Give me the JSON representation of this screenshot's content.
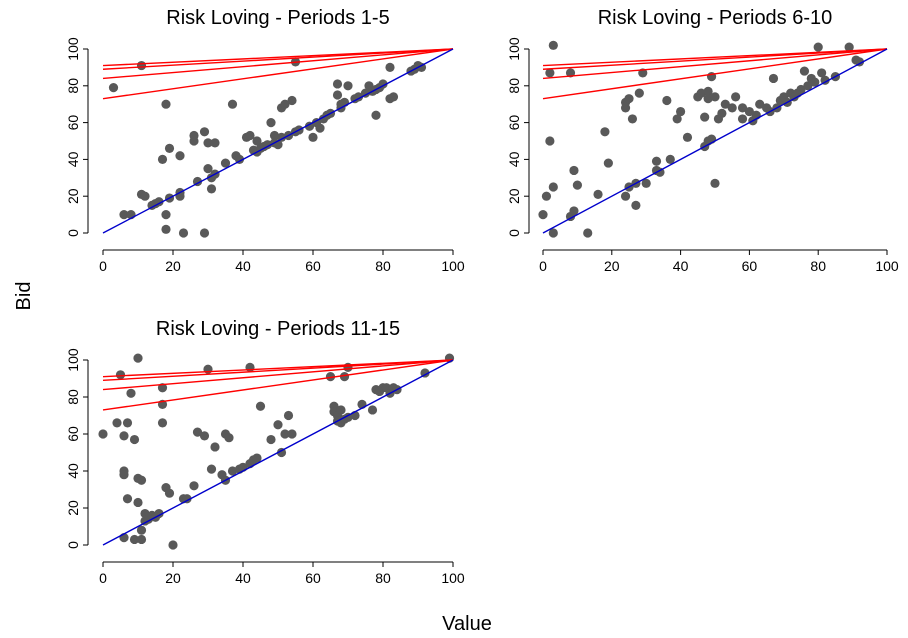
{
  "figure": {
    "xlabel": "Value",
    "ylabel": "Bid"
  },
  "colors": {
    "points": "#595959",
    "equilibrium_lines": "#ff0000",
    "risk_neutral_line": "#0000cc",
    "axes": "#000000"
  },
  "chart_data": [
    {
      "type": "scatter",
      "title": "Risk Loving - Periods 1-5",
      "xlim": [
        0,
        100
      ],
      "ylim": [
        0,
        100
      ],
      "xticks": [
        "0",
        "20",
        "40",
        "60",
        "80",
        "100"
      ],
      "yticks": [
        "0",
        "20",
        "40",
        "60",
        "80",
        "100"
      ],
      "points": [
        [
          3,
          79
        ],
        [
          6,
          10
        ],
        [
          8,
          10
        ],
        [
          11,
          91
        ],
        [
          11,
          21
        ],
        [
          12,
          20
        ],
        [
          14,
          15
        ],
        [
          15,
          16
        ],
        [
          16,
          17
        ],
        [
          17,
          40
        ],
        [
          18,
          70
        ],
        [
          18,
          10
        ],
        [
          18,
          2
        ],
        [
          19,
          19
        ],
        [
          19,
          46
        ],
        [
          22,
          42
        ],
        [
          22,
          20
        ],
        [
          22,
          22
        ],
        [
          23,
          0
        ],
        [
          26,
          50
        ],
        [
          26,
          53
        ],
        [
          27,
          28
        ],
        [
          29,
          0
        ],
        [
          29,
          55
        ],
        [
          30,
          35
        ],
        [
          30,
          49
        ],
        [
          31,
          24
        ],
        [
          31,
          30
        ],
        [
          32,
          32
        ],
        [
          32,
          49
        ],
        [
          35,
          38
        ],
        [
          37,
          70
        ],
        [
          38,
          42
        ],
        [
          39,
          40
        ],
        [
          41,
          52
        ],
        [
          42,
          53
        ],
        [
          43,
          45
        ],
        [
          44,
          44
        ],
        [
          44,
          50
        ],
        [
          45,
          46
        ],
        [
          46,
          47
        ],
        [
          47,
          48
        ],
        [
          48,
          60
        ],
        [
          49,
          49
        ],
        [
          49,
          53
        ],
        [
          50,
          48
        ],
        [
          51,
          68
        ],
        [
          51,
          52
        ],
        [
          52,
          70
        ],
        [
          53,
          53
        ],
        [
          54,
          72
        ],
        [
          55,
          55
        ],
        [
          55,
          93
        ],
        [
          56,
          56
        ],
        [
          59,
          58
        ],
        [
          60,
          52
        ],
        [
          61,
          60
        ],
        [
          62,
          57
        ],
        [
          63,
          62
        ],
        [
          64,
          64
        ],
        [
          65,
          65
        ],
        [
          67,
          75
        ],
        [
          67,
          81
        ],
        [
          68,
          70
        ],
        [
          68,
          68
        ],
        [
          69,
          71
        ],
        [
          70,
          80
        ],
        [
          72,
          73
        ],
        [
          73,
          74
        ],
        [
          75,
          76
        ],
        [
          76,
          80
        ],
        [
          77,
          77
        ],
        [
          78,
          64
        ],
        [
          78,
          78
        ],
        [
          79,
          79
        ],
        [
          80,
          81
        ],
        [
          82,
          90
        ],
        [
          82,
          73
        ],
        [
          83,
          74
        ],
        [
          88,
          88
        ],
        [
          89,
          89
        ],
        [
          90,
          91
        ],
        [
          91,
          90
        ]
      ],
      "lines": [
        {
          "name": "",
          "color": "#ff0000",
          "x": [
            0,
            100
          ],
          "y": [
            91,
            100
          ]
        },
        {
          "name": "",
          "color": "#ff0000",
          "x": [
            0,
            100
          ],
          "y": [
            89,
            100
          ]
        },
        {
          "name": "",
          "color": "#ff0000",
          "x": [
            0,
            100
          ],
          "y": [
            84,
            100
          ]
        },
        {
          "name": "",
          "color": "#ff0000",
          "x": [
            0,
            100
          ],
          "y": [
            73,
            100
          ]
        },
        {
          "name": "",
          "color": "#0000cc",
          "x": [
            0,
            100
          ],
          "y": [
            0,
            100
          ]
        }
      ]
    },
    {
      "type": "scatter",
      "title": "Risk Loving - Periods 6-10",
      "xlim": [
        0,
        100
      ],
      "ylim": [
        0,
        100
      ],
      "xticks": [
        "0",
        "20",
        "40",
        "60",
        "80",
        "100"
      ],
      "yticks": [
        "0",
        "20",
        "40",
        "60",
        "80",
        "100"
      ],
      "points": [
        [
          0,
          10
        ],
        [
          1,
          20
        ],
        [
          2,
          87
        ],
        [
          2,
          50
        ],
        [
          3,
          0
        ],
        [
          3,
          25
        ],
        [
          3,
          102
        ],
        [
          8,
          87
        ],
        [
          8,
          9
        ],
        [
          9,
          12
        ],
        [
          9,
          34
        ],
        [
          10,
          26
        ],
        [
          13,
          0
        ],
        [
          16,
          21
        ],
        [
          18,
          55
        ],
        [
          19,
          38
        ],
        [
          24,
          20
        ],
        [
          24,
          68
        ],
        [
          24,
          71
        ],
        [
          25,
          73
        ],
        [
          25,
          25
        ],
        [
          26,
          62
        ],
        [
          27,
          15
        ],
        [
          27,
          27
        ],
        [
          28,
          76
        ],
        [
          29,
          87
        ],
        [
          30,
          27
        ],
        [
          33,
          34
        ],
        [
          33,
          39
        ],
        [
          34,
          33
        ],
        [
          36,
          72
        ],
        [
          37,
          40
        ],
        [
          39,
          62
        ],
        [
          40,
          66
        ],
        [
          42,
          52
        ],
        [
          45,
          74
        ],
        [
          46,
          76
        ],
        [
          47,
          47
        ],
        [
          47,
          63
        ],
        [
          48,
          50
        ],
        [
          48,
          77
        ],
        [
          48,
          73
        ],
        [
          49,
          51
        ],
        [
          49,
          85
        ],
        [
          50,
          27
        ],
        [
          50,
          74
        ],
        [
          51,
          62
        ],
        [
          52,
          65
        ],
        [
          53,
          70
        ],
        [
          55,
          68
        ],
        [
          56,
          74
        ],
        [
          58,
          68
        ],
        [
          58,
          62
        ],
        [
          60,
          66
        ],
        [
          61,
          61
        ],
        [
          62,
          64
        ],
        [
          63,
          70
        ],
        [
          65,
          68
        ],
        [
          66,
          66
        ],
        [
          67,
          84
        ],
        [
          68,
          68
        ],
        [
          69,
          72
        ],
        [
          70,
          74
        ],
        [
          71,
          71
        ],
        [
          72,
          76
        ],
        [
          73,
          74
        ],
        [
          74,
          76
        ],
        [
          75,
          78
        ],
        [
          76,
          88
        ],
        [
          77,
          80
        ],
        [
          78,
          84
        ],
        [
          79,
          82
        ],
        [
          80,
          101
        ],
        [
          81,
          87
        ],
        [
          82,
          83
        ],
        [
          85,
          85
        ],
        [
          89,
          101
        ],
        [
          91,
          94
        ],
        [
          92,
          93
        ]
      ],
      "lines": [
        {
          "name": "",
          "color": "#ff0000",
          "x": [
            0,
            100
          ],
          "y": [
            91,
            100
          ]
        },
        {
          "name": "",
          "color": "#ff0000",
          "x": [
            0,
            100
          ],
          "y": [
            89,
            100
          ]
        },
        {
          "name": "",
          "color": "#ff0000",
          "x": [
            0,
            100
          ],
          "y": [
            84,
            100
          ]
        },
        {
          "name": "",
          "color": "#ff0000",
          "x": [
            0,
            100
          ],
          "y": [
            73,
            100
          ]
        },
        {
          "name": "",
          "color": "#0000cc",
          "x": [
            0,
            100
          ],
          "y": [
            0,
            100
          ]
        }
      ]
    },
    {
      "type": "scatter",
      "title": "Risk Loving - Periods 11-15",
      "xlim": [
        0,
        100
      ],
      "ylim": [
        0,
        100
      ],
      "xticks": [
        "0",
        "20",
        "40",
        "60",
        "80",
        "100"
      ],
      "yticks": [
        "0",
        "20",
        "40",
        "60",
        "80",
        "100"
      ],
      "points": [
        [
          0,
          60
        ],
        [
          4,
          66
        ],
        [
          5,
          92
        ],
        [
          6,
          40
        ],
        [
          6,
          38
        ],
        [
          6,
          4
        ],
        [
          6,
          59
        ],
        [
          7,
          66
        ],
        [
          7,
          25
        ],
        [
          8,
          82
        ],
        [
          9,
          57
        ],
        [
          9,
          3
        ],
        [
          10,
          101
        ],
        [
          10,
          23
        ],
        [
          10,
          36
        ],
        [
          11,
          35
        ],
        [
          11,
          3
        ],
        [
          11,
          8
        ],
        [
          12,
          17
        ],
        [
          12,
          13
        ],
        [
          13,
          14
        ],
        [
          14,
          16
        ],
        [
          15,
          15
        ],
        [
          16,
          17
        ],
        [
          17,
          85
        ],
        [
          17,
          76
        ],
        [
          17,
          66
        ],
        [
          18,
          31
        ],
        [
          19,
          28
        ],
        [
          20,
          0
        ],
        [
          23,
          25
        ],
        [
          24,
          25
        ],
        [
          26,
          32
        ],
        [
          27,
          61
        ],
        [
          29,
          59
        ],
        [
          30,
          95
        ],
        [
          31,
          41
        ],
        [
          32,
          53
        ],
        [
          34,
          38
        ],
        [
          35,
          60
        ],
        [
          35,
          35
        ],
        [
          36,
          58
        ],
        [
          37,
          40
        ],
        [
          39,
          41
        ],
        [
          40,
          42
        ],
        [
          42,
          96
        ],
        [
          42,
          44
        ],
        [
          43,
          46
        ],
        [
          44,
          47
        ],
        [
          45,
          75
        ],
        [
          48,
          57
        ],
        [
          50,
          65
        ],
        [
          51,
          50
        ],
        [
          52,
          60
        ],
        [
          53,
          70
        ],
        [
          54,
          60
        ],
        [
          65,
          91
        ],
        [
          66,
          75
        ],
        [
          66,
          72
        ],
        [
          67,
          70
        ],
        [
          67,
          67
        ],
        [
          68,
          73
        ],
        [
          68,
          66
        ],
        [
          69,
          68
        ],
        [
          69,
          91
        ],
        [
          70,
          69
        ],
        [
          70,
          96
        ],
        [
          72,
          70
        ],
        [
          74,
          76
        ],
        [
          77,
          73
        ],
        [
          78,
          84
        ],
        [
          79,
          83
        ],
        [
          80,
          85
        ],
        [
          81,
          85
        ],
        [
          82,
          82
        ],
        [
          83,
          85
        ],
        [
          84,
          84
        ],
        [
          92,
          93
        ],
        [
          99,
          101
        ]
      ],
      "lines": [
        {
          "name": "",
          "color": "#ff0000",
          "x": [
            0,
            100
          ],
          "y": [
            91,
            100
          ]
        },
        {
          "name": "",
          "color": "#ff0000",
          "x": [
            0,
            100
          ],
          "y": [
            89,
            100
          ]
        },
        {
          "name": "",
          "color": "#ff0000",
          "x": [
            0,
            100
          ],
          "y": [
            84,
            100
          ]
        },
        {
          "name": "",
          "color": "#ff0000",
          "x": [
            0,
            100
          ],
          "y": [
            73,
            100
          ]
        },
        {
          "name": "",
          "color": "#0000cc",
          "x": [
            0,
            100
          ],
          "y": [
            0,
            100
          ]
        }
      ]
    }
  ]
}
